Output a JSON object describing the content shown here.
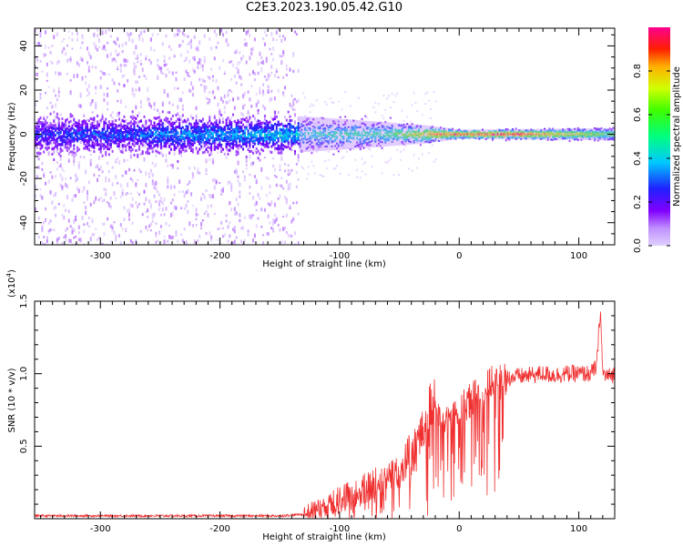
{
  "title": "C2E3.2023.190.05.42.G10",
  "chart_data": [
    {
      "type": "heatmap",
      "xlabel": "Height of straight line (km)",
      "ylabel": "Frequency (Hz)",
      "xlim": [
        -355,
        130
      ],
      "ylim": [
        -50,
        48
      ],
      "x_ticks": [
        -300,
        -200,
        -100,
        0,
        100
      ],
      "x_tick_labels": [
        "-300",
        "-200",
        "-100",
        "0",
        "100"
      ],
      "y_ticks": [
        -40,
        -20,
        0,
        20,
        40
      ],
      "y_tick_labels": [
        "-40",
        "-20",
        "0",
        "20",
        "40"
      ],
      "colorbar": {
        "label": "Normalized spectral amplitude",
        "range": [
          0,
          1
        ],
        "ticks": [
          0.0,
          0.2,
          0.4,
          0.6,
          0.8
        ],
        "tick_labels": [
          "0.0",
          "0.2",
          "0.4",
          "0.6",
          "0.8"
        ]
      },
      "description_points": {
        "scatter_extent_limit_x": -135,
        "band_half_width_hz": [
          [
            -355,
            6
          ],
          [
            -140,
            6
          ],
          [
            -100,
            5
          ],
          [
            -30,
            3
          ],
          [
            0,
            1.5
          ],
          [
            130,
            2
          ]
        ],
        "peak_amplitude": [
          [
            -355,
            0.25
          ],
          [
            -140,
            0.4
          ],
          [
            -100,
            0.5
          ],
          [
            -60,
            0.55
          ],
          [
            -20,
            0.85
          ],
          [
            0,
            0.9
          ],
          [
            50,
            0.95
          ],
          [
            130,
            0.6
          ]
        ]
      }
    },
    {
      "type": "line",
      "xlabel": "Height of straight line (km)",
      "ylabel": "SNR (10 * v/v)",
      "y_scale_note": "(x10",
      "y_scale_exp": "4",
      "y_scale_close": ")",
      "xlim": [
        -355,
        130
      ],
      "ylim": [
        0,
        1.5
      ],
      "x_ticks": [
        -300,
        -200,
        -100,
        0,
        100
      ],
      "x_tick_labels": [
        "-300",
        "-200",
        "-100",
        "0",
        "100"
      ],
      "y_ticks": [
        0.5,
        1.0,
        1.5
      ],
      "y_tick_labels": [
        "0.5",
        "1.0",
        "1.5"
      ],
      "series": [
        {
          "color": "#f03030",
          "x": [
            -355,
            -300,
            -250,
            -200,
            -150,
            -130,
            -120,
            -110,
            -100,
            -90,
            -80,
            -70,
            -60,
            -50,
            -45,
            -40,
            -35,
            -30,
            -25,
            -20,
            -15,
            -10,
            -5,
            0,
            10,
            20,
            30,
            40,
            50,
            60,
            70,
            80,
            90,
            100,
            110,
            115,
            118,
            120,
            125,
            130
          ],
          "y": [
            0.02,
            0.02,
            0.02,
            0.02,
            0.02,
            0.03,
            0.06,
            0.1,
            0.13,
            0.17,
            0.2,
            0.24,
            0.3,
            0.35,
            0.38,
            0.45,
            0.5,
            0.6,
            0.8,
            0.78,
            0.7,
            0.68,
            0.72,
            0.76,
            0.82,
            0.9,
            0.95,
            0.97,
            0.98,
            0.99,
            1.0,
            0.99,
            1.0,
            1.0,
            1.0,
            1.05,
            1.45,
            1.0,
            0.98,
            1.0
          ]
        }
      ]
    }
  ]
}
